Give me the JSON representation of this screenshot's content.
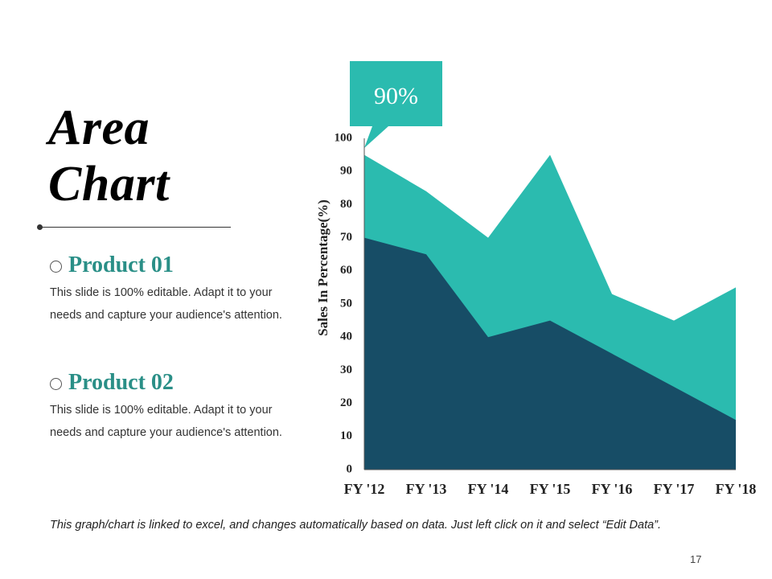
{
  "slide": {
    "title_line1": "Area",
    "title_line2": "Chart",
    "page_number": "17",
    "footnote": "This graph/chart is linked to excel, and changes automatically based on data. Just left click on it and select “Edit Data”."
  },
  "products": [
    {
      "name": "Product 01",
      "desc_line1": "This slide is 100% editable. Adapt it to your",
      "desc_line2": "needs and capture your audience's attention."
    },
    {
      "name": "Product 02",
      "desc_line1": "This slide is 100% editable. Adapt it to your",
      "desc_line2": "needs and capture your audience's attention."
    }
  ],
  "colors": {
    "series_front": "#174d66",
    "series_back": "#2bbbaf",
    "callout": "#2bbbaf",
    "product_heading": "#2a8f87"
  },
  "chart_data": {
    "type": "area",
    "title": "",
    "xlabel": "",
    "ylabel": "Sales In Percentage(%)",
    "categories": [
      "FY '12",
      "FY '13",
      "FY '14",
      "FY '15",
      "FY '16",
      "FY '17",
      "FY '18"
    ],
    "ylim": [
      0,
      100
    ],
    "yticks": [
      0,
      10,
      20,
      30,
      40,
      50,
      60,
      70,
      80,
      90,
      100
    ],
    "series": [
      {
        "name": "Product 02",
        "values": [
          95,
          84,
          70,
          95,
          53,
          45,
          55
        ]
      },
      {
        "name": "Product 01",
        "values": [
          70,
          65,
          40,
          45,
          35,
          25,
          15
        ]
      }
    ],
    "callout_label": "90%",
    "grid": false,
    "legend": "left"
  }
}
